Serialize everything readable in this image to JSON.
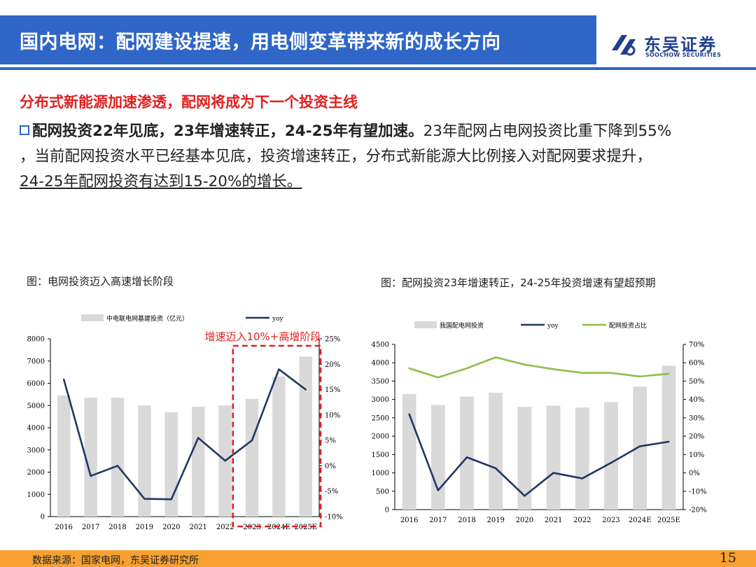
{
  "header": {
    "title": "国内电网：配网建设提速，用电侧变革带来新的成长方向"
  },
  "logo": {
    "cn": "东吴证券",
    "en": "SOOCHOW SECURITIES"
  },
  "subtitle": "分布式新能源加速渗透，配网将成为下一个投资主线",
  "body": {
    "bold": "配网投资22年见底，23年增速转正，24-25年有望加速。",
    "line1": "23年配网占电网投资比重下降到55%",
    "line2": "，当前配网投资水平已经基本见底，投资增速转正，分布式新能源大比例接入对配网要求提升，",
    "line3": "24-25年配网投资有达到15-20%的增长。"
  },
  "fig1_title": "图：电网投资迈入高速增长阶段",
  "fig2_title": "图：配网投资23年增速转正，24-25年投资增速有望超预期",
  "footer": {
    "source": "数据来源：国家电网，东吴证券研究所",
    "page": "15"
  },
  "colors": {
    "bar": "#d9d9d9",
    "yoy": "#1f3864",
    "share": "#8dbe4a",
    "highlight": "#e02020",
    "header": "#2f66c7",
    "footer": "#f5a030"
  },
  "chart_data": [
    {
      "type": "bar",
      "categories": [
        "2016",
        "2017",
        "2018",
        "2019",
        "2020",
        "2021",
        "2022",
        "2023",
        "2024E",
        "2025E"
      ],
      "series": [
        {
          "name": "中电联电网基建投资（亿元）",
          "type": "bar",
          "axis": "left",
          "values": [
            5450,
            5350,
            5350,
            5000,
            4700,
            4950,
            5000,
            5300,
            6300,
            7200
          ]
        },
        {
          "name": "yoy",
          "type": "line",
          "axis": "right",
          "values": [
            17,
            -2,
            0,
            -6.5,
            -6.6,
            5.5,
            1,
            5,
            19,
            15
          ]
        }
      ],
      "ylim": [
        0,
        8000
      ],
      "yticks": [
        0,
        1000,
        2000,
        3000,
        4000,
        5000,
        6000,
        7000,
        8000
      ],
      "y2lim": [
        -10,
        25
      ],
      "y2ticks": [
        "25%",
        "20%",
        "15%",
        "10%",
        "5%",
        "0%",
        "-5%",
        "-10%"
      ],
      "annotation": "增速迈入10%+高增阶段",
      "highlight_categories": [
        "2023",
        "2024E",
        "2025E"
      ],
      "legend": "top"
    },
    {
      "type": "bar",
      "categories": [
        "2016",
        "2017",
        "2018",
        "2019",
        "2020",
        "2021",
        "2022",
        "2023",
        "2024E",
        "2025E"
      ],
      "series": [
        {
          "name": "我国配电网投资",
          "type": "bar",
          "axis": "left",
          "values": [
            3150,
            2850,
            3080,
            3180,
            2800,
            2830,
            2780,
            2930,
            3350,
            3920
          ]
        },
        {
          "name": "yoy",
          "type": "line",
          "axis": "right",
          "values": [
            32,
            -9.5,
            8.5,
            2.5,
            -12.5,
            0,
            -3,
            5.5,
            14.5,
            17
          ]
        },
        {
          "name": "配网投资占比",
          "type": "line",
          "axis": "right",
          "values": [
            57,
            52,
            57,
            63,
            59,
            56.5,
            54.5,
            54.5,
            52.5,
            54
          ]
        }
      ],
      "ylim": [
        0,
        4500
      ],
      "yticks": [
        0,
        500,
        1000,
        1500,
        2000,
        2500,
        3000,
        3500,
        4000,
        4500
      ],
      "y2lim": [
        -20,
        70
      ],
      "y2ticks": [
        "70%",
        "60%",
        "50%",
        "40%",
        "30%",
        "20%",
        "10%",
        "0%",
        "-10%",
        "-20%"
      ],
      "legend": "top"
    }
  ]
}
